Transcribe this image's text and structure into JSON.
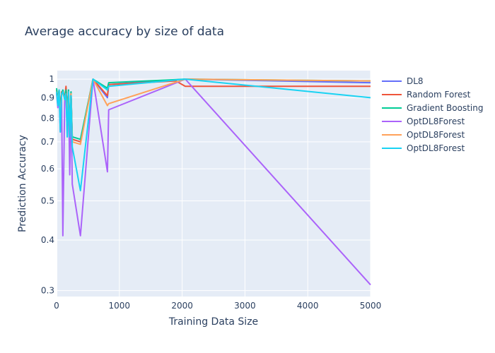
{
  "chart_data": {
    "type": "line",
    "title": "Average accuracy by size of data",
    "xlabel": "Training Data Size",
    "ylabel": "Prediction Accuracy",
    "xlim": [
      0,
      5000
    ],
    "ylim": [
      0.29,
      1.05
    ],
    "yscale": "log",
    "x_ticks": [
      0,
      1000,
      2000,
      3000,
      4000,
      5000
    ],
    "x_tick_labels": [
      "0",
      "1000",
      "2000",
      "3000",
      "4000",
      "5000"
    ],
    "y_ticks": [
      0.3,
      0.4,
      0.5,
      0.6,
      0.7,
      0.8,
      0.9,
      1
    ],
    "y_tick_labels": [
      "0.3",
      "0.4",
      "0.5",
      "0.6",
      "0.7",
      "0.8",
      "0.9",
      "1"
    ],
    "grid": true,
    "legend_position": "right",
    "background": "#E5ECF6",
    "series": [
      {
        "name": "DL8",
        "color": "#636EFA",
        "x": [
          0,
          20,
          40,
          60,
          80,
          100,
          130,
          150,
          170,
          190,
          210,
          230,
          250,
          380,
          580,
          810,
          830,
          2050,
          5000
        ],
        "y": [
          0.93,
          0.88,
          0.93,
          0.8,
          0.92,
          0.94,
          0.89,
          0.93,
          0.81,
          0.94,
          0.74,
          0.93,
          0.71,
          0.7,
          1.0,
          0.9,
          0.97,
          1.0,
          0.98
        ]
      },
      {
        "name": "Random Forest",
        "color": "#EF553B",
        "x": [
          0,
          20,
          40,
          60,
          80,
          100,
          130,
          150,
          170,
          190,
          210,
          230,
          250,
          380,
          580,
          810,
          830,
          1900,
          2050,
          5000
        ],
        "y": [
          0.94,
          0.9,
          0.94,
          0.85,
          0.93,
          0.93,
          0.9,
          0.96,
          0.85,
          0.93,
          0.75,
          0.92,
          0.71,
          0.7,
          1.0,
          0.91,
          0.97,
          0.99,
          0.96,
          0.96
        ]
      },
      {
        "name": "Gradient Boosting",
        "color": "#00CC96",
        "x": [
          0,
          20,
          40,
          60,
          80,
          100,
          130,
          150,
          170,
          190,
          210,
          230,
          250,
          380,
          580,
          810,
          830,
          2050,
          5000
        ],
        "y": [
          0.95,
          0.89,
          0.94,
          0.82,
          0.92,
          0.94,
          0.89,
          0.94,
          0.83,
          0.94,
          0.75,
          0.93,
          0.72,
          0.71,
          1.0,
          0.95,
          0.98,
          1.0,
          0.99
        ]
      },
      {
        "name": "OptDL8Forest",
        "color": "#AB63FA",
        "x": [
          0,
          20,
          40,
          60,
          80,
          100,
          130,
          150,
          170,
          190,
          210,
          230,
          250,
          380,
          580,
          810,
          830,
          2050,
          5000
        ],
        "y": [
          0.92,
          0.85,
          0.93,
          0.74,
          0.9,
          0.41,
          0.9,
          0.92,
          0.72,
          0.92,
          0.58,
          0.91,
          0.55,
          0.41,
          1.0,
          0.59,
          0.84,
          1.0,
          0.31
        ]
      },
      {
        "name": "OptDL8Forest",
        "color": "#FFA15A",
        "x": [
          0,
          20,
          40,
          60,
          80,
          100,
          130,
          150,
          170,
          190,
          210,
          230,
          250,
          380,
          580,
          810,
          830,
          2050,
          5000
        ],
        "y": [
          0.93,
          0.88,
          0.93,
          0.79,
          0.91,
          0.93,
          0.89,
          0.92,
          0.8,
          0.93,
          0.73,
          0.92,
          0.7,
          0.69,
          1.0,
          0.86,
          0.87,
          1.0,
          0.99
        ]
      },
      {
        "name": "OptDL8Forest",
        "color": "#19D3F3",
        "x": [
          0,
          20,
          40,
          60,
          80,
          100,
          130,
          150,
          170,
          190,
          210,
          230,
          250,
          380,
          580,
          810,
          830,
          2050,
          5000
        ],
        "y": [
          0.93,
          0.86,
          0.94,
          0.74,
          0.92,
          0.93,
          0.89,
          0.92,
          0.72,
          0.93,
          0.72,
          0.91,
          0.68,
          0.53,
          1.0,
          0.94,
          0.96,
          1.0,
          0.9
        ]
      }
    ]
  }
}
